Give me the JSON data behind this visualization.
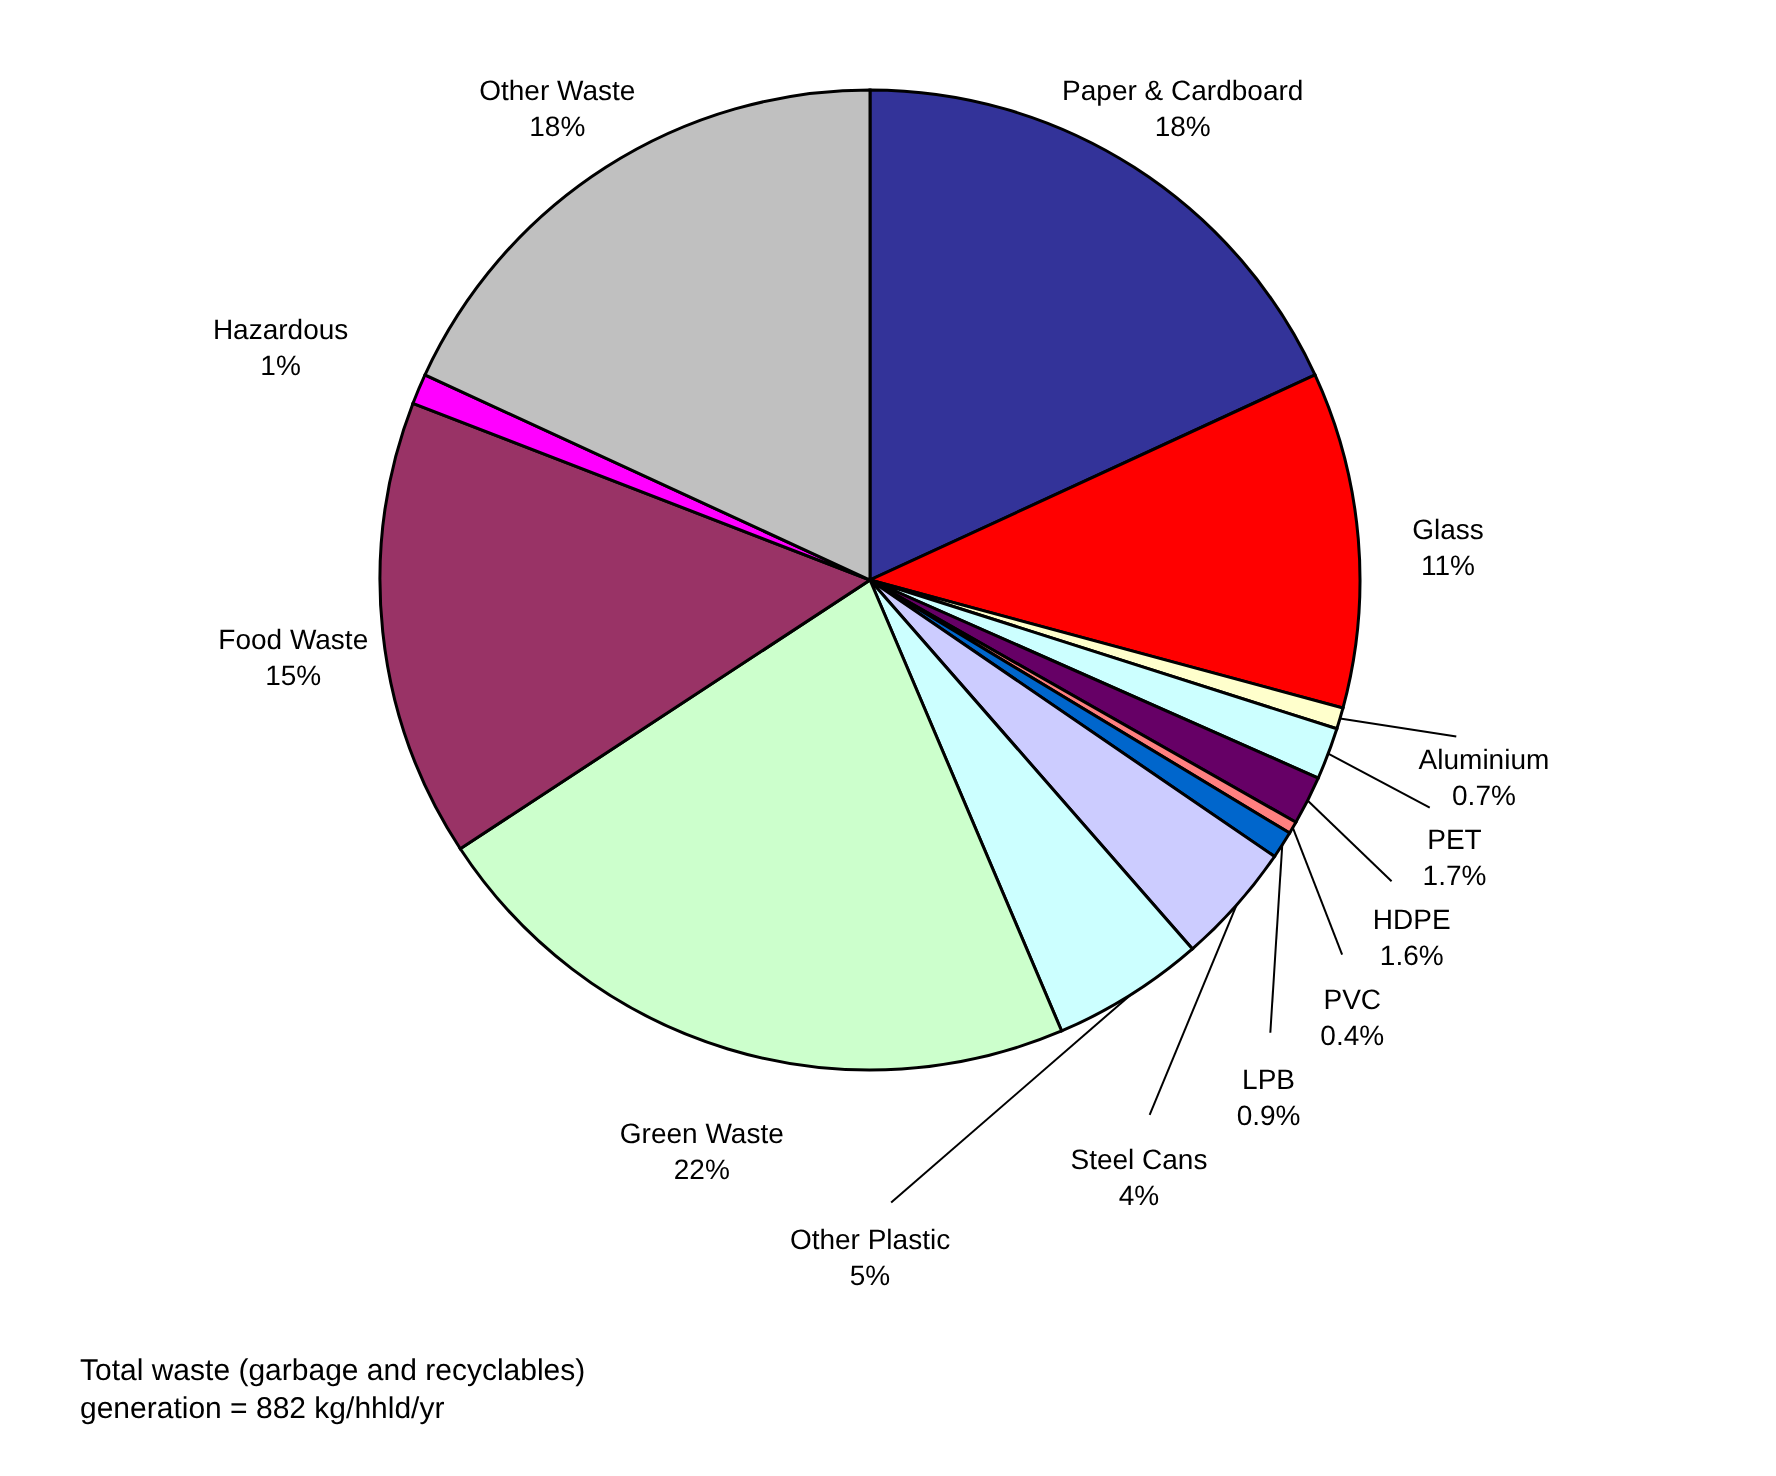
{
  "chart_data": {
    "type": "pie",
    "categories": [
      "Paper & Cardboard",
      "Glass",
      "Aluminium",
      "PET",
      "HDPE",
      "PVC",
      "LPB",
      "Steel Cans",
      "Other Plastic",
      "Green Waste",
      "Food Waste",
      "Hazardous",
      "Other Waste"
    ],
    "values": [
      18,
      11,
      0.7,
      1.7,
      1.6,
      0.4,
      0.9,
      4,
      5,
      22,
      15,
      1,
      18
    ],
    "value_labels": [
      "18%",
      "11%",
      "0.7%",
      "1.7%",
      "1.6%",
      "0.4%",
      "0.9%",
      "4%",
      "5%",
      "22%",
      "15%",
      "1%",
      "18%"
    ],
    "colors": [
      "#333399",
      "#ff0000",
      "#ffffcc",
      "#ccffff",
      "#660066",
      "#ff8080",
      "#0066cc",
      "#ccccff",
      "#ccffff",
      "#ccffcc",
      "#993366",
      "#ff00ff",
      "#c0c0c0"
    ],
    "annotations": [
      "Total waste (garbage and recyclables)\ngeneration = 882 kg/hhld/yr"
    ]
  }
}
